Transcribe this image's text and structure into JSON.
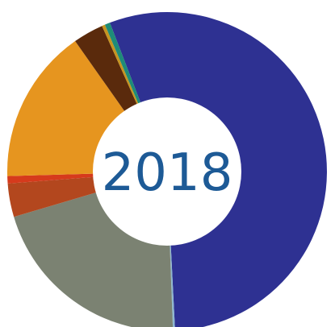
{
  "chart_data": {
    "type": "pie",
    "center_label": "2018",
    "slices": [
      {
        "value": 51.9,
        "color": "#2e3192"
      },
      {
        "value": 0.2,
        "color": "#8fb8d0"
      },
      {
        "value": 19.8,
        "color": "#7b8272"
      },
      {
        "value": 3.2,
        "color": "#b3471e"
      },
      {
        "value": 0.7,
        "color": "#d63a1c"
      },
      {
        "value": 14.8,
        "color": "#e6951f"
      },
      {
        "value": 2.9,
        "color": "#5a2a0c"
      },
      {
        "value": 0.3,
        "color": "#c69520"
      },
      {
        "value": 0.5,
        "color": "#1e8c78"
      }
    ]
  }
}
